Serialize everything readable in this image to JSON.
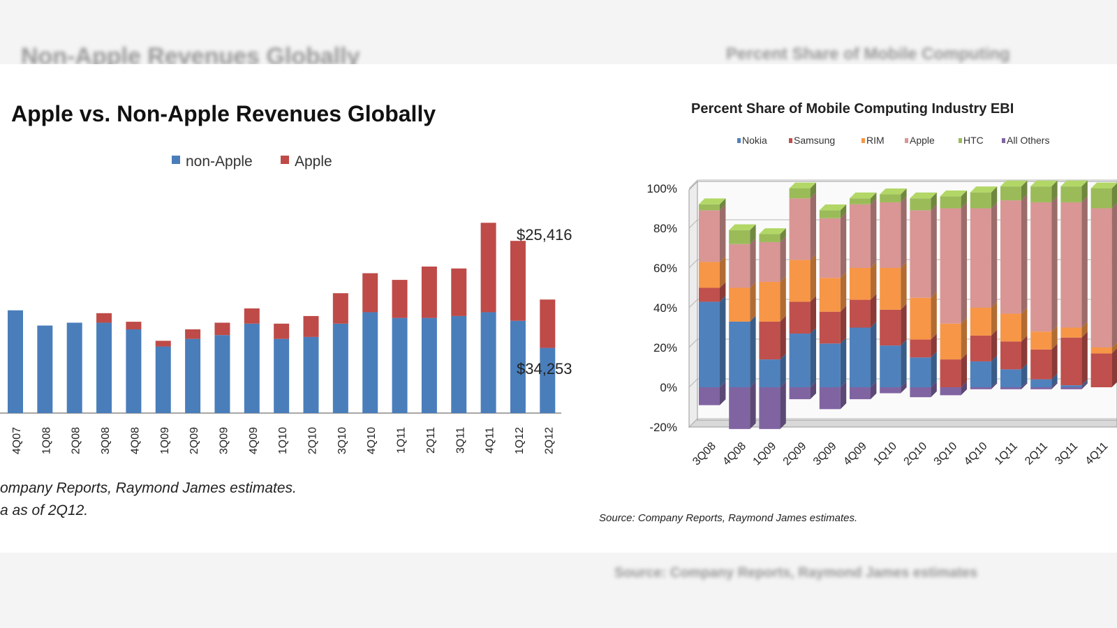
{
  "background": {
    "top_left_blur": "Non-Apple Revenues Globally",
    "top_right_blur": "Percent Share of Mobile Computing",
    "bottom_blur": "Source: Company Reports, Raymond James estimates"
  },
  "left_chart": {
    "source_line1": "ompany Reports, Raymond James estimates.",
    "source_line2": "a as of 2Q12."
  },
  "right_chart": {
    "source": "Source:  Company Reports, Raymond James estimates."
  },
  "colors": {
    "nonapple": "#4a7ebb",
    "apple": "#be4b48",
    "nokia": "#4f81bd",
    "samsung": "#c0504d",
    "rim": "#f79646",
    "apple_share": "#d99694",
    "htc": "#9bbb59",
    "all_others": "#8064a2"
  },
  "chart_data": [
    {
      "type": "bar",
      "stacked": true,
      "title": "Apple vs. Non-Apple Revenues Globally",
      "categories": [
        "4Q07",
        "1Q08",
        "2Q08",
        "3Q08",
        "4Q08",
        "1Q09",
        "2Q09",
        "3Q09",
        "4Q09",
        "1Q10",
        "2Q10",
        "3Q10",
        "4Q10",
        "1Q11",
        "2Q11",
        "3Q11",
        "4Q11",
        "1Q12",
        "2Q12"
      ],
      "series": [
        {
          "name": "non-Apple",
          "values": [
            54000,
            46000,
            47500,
            47500,
            44000,
            35000,
            39000,
            41000,
            47000,
            39000,
            40000,
            47000,
            53000,
            50000,
            50000,
            51000,
            53000,
            48500,
            34253
          ]
        },
        {
          "name": "Apple",
          "values": [
            0,
            0,
            0,
            5000,
            4000,
            3000,
            5000,
            6500,
            8000,
            8000,
            11000,
            16000,
            20500,
            20000,
            27000,
            25000,
            47000,
            42000,
            25416
          ]
        }
      ],
      "data_labels": [
        "$25,416",
        "$34,253"
      ],
      "legend": "top",
      "ylim": [
        0,
        110000
      ]
    },
    {
      "type": "bar",
      "stacked": true,
      "title": "Percent Share of Mobile Computing Industry EBI",
      "categories": [
        "3Q08",
        "4Q08",
        "1Q09",
        "2Q09",
        "3Q09",
        "4Q09",
        "1Q10",
        "2Q10",
        "3Q10",
        "4Q10",
        "1Q11",
        "2Q11",
        "3Q11",
        "4Q11"
      ],
      "series": [
        {
          "name": "Nokia",
          "values": [
            43,
            33,
            14,
            27,
            22,
            30,
            21,
            15,
            0,
            13,
            9,
            4,
            1,
            0
          ]
        },
        {
          "name": "Samsung",
          "values": [
            7,
            0,
            19,
            16,
            16,
            14,
            18,
            9,
            14,
            13,
            14,
            15,
            24,
            17
          ]
        },
        {
          "name": "RIM",
          "values": [
            13,
            17,
            20,
            21,
            17,
            16,
            21,
            21,
            18,
            14,
            14,
            9,
            5,
            3
          ]
        },
        {
          "name": "Apple",
          "values": [
            26,
            22,
            20,
            31,
            30,
            32,
            33,
            44,
            58,
            50,
            57,
            65,
            63,
            70
          ]
        },
        {
          "name": "HTC",
          "values": [
            3,
            7,
            4,
            5,
            4,
            3,
            4,
            6,
            6,
            8,
            7,
            8,
            8,
            10
          ]
        },
        {
          "name": "All Others",
          "values": [
            -9,
            -21,
            -21,
            -6,
            -11,
            -6,
            -3,
            -5,
            -4,
            -1,
            -1,
            -1,
            -1,
            0
          ]
        }
      ],
      "legend": "top",
      "yticks": [
        "100%",
        "80%",
        "60%",
        "40%",
        "20%",
        "0%",
        "-20%"
      ],
      "ylim": [
        -20,
        100
      ]
    }
  ]
}
